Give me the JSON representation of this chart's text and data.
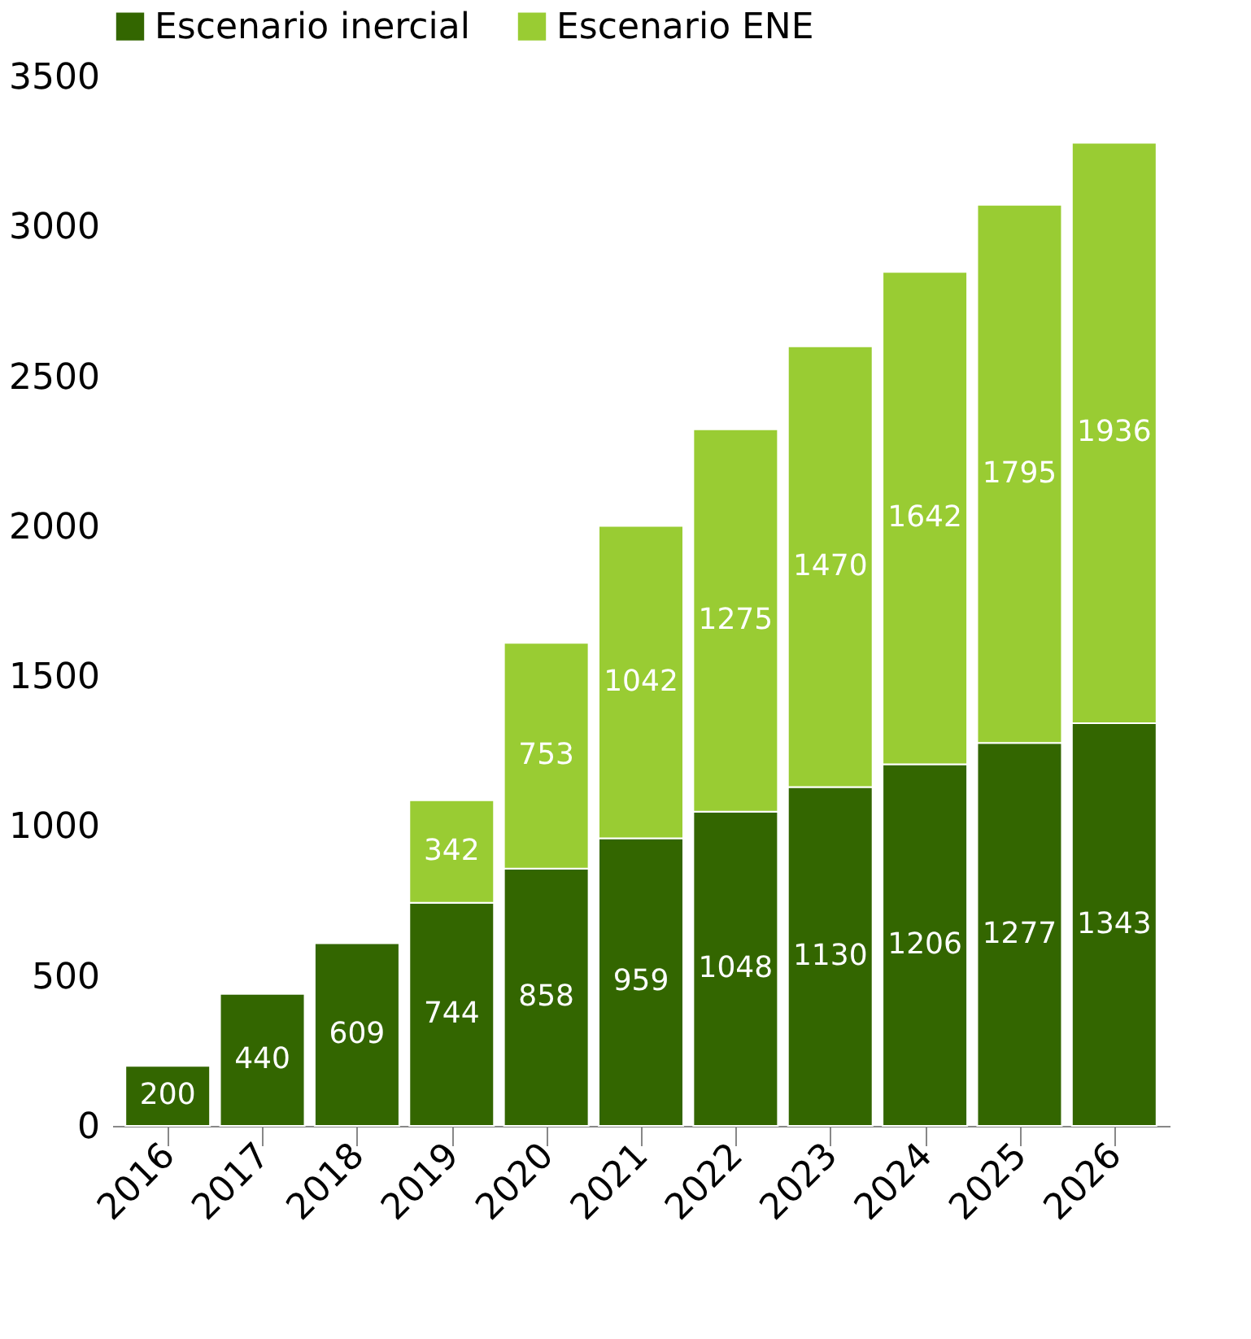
{
  "chart_data": {
    "type": "bar",
    "stacked": true,
    "categories": [
      "2016",
      "2017",
      "2018",
      "2019",
      "2020",
      "2021",
      "2022",
      "2023",
      "2024",
      "2025",
      "2026"
    ],
    "series": [
      {
        "name": "Escenario inercial",
        "color": "#336600",
        "values": [
          200,
          440,
          609,
          744,
          858,
          959,
          1048,
          1130,
          1206,
          1277,
          1343
        ]
      },
      {
        "name": "Escenario ENE",
        "color": "#99cc33",
        "values": [
          null,
          null,
          null,
          342,
          753,
          1042,
          1275,
          1470,
          1642,
          1795,
          1936
        ]
      }
    ],
    "ylim": [
      0,
      3500
    ],
    "yticks": [
      0,
      500,
      1000,
      1500,
      2000,
      2500,
      3000,
      3500
    ],
    "grid": false,
    "legend": "top",
    "data_labels": true
  }
}
